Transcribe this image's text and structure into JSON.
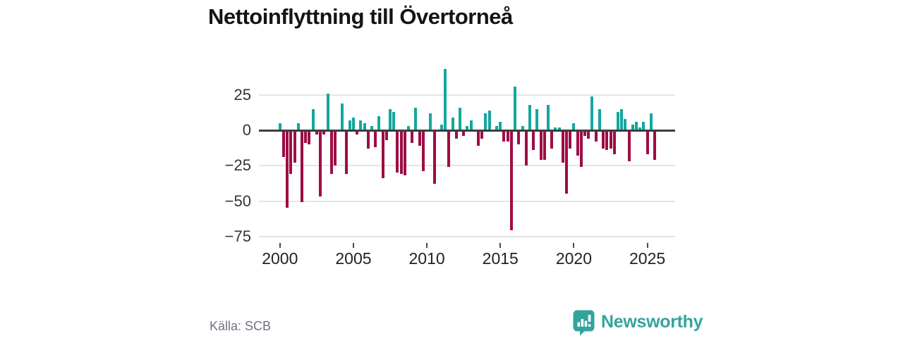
{
  "title": "Nettoinflyttning till Övertorneå",
  "source": "Källa: SCB",
  "branding": {
    "name": "Newsworthy",
    "color": "#35a39c"
  },
  "chart_data": {
    "type": "bar",
    "title": "Nettoinflyttning till Övertorneå",
    "frequency": "quarterly",
    "x_start_year": 2000,
    "x_start_quarter": 1,
    "values": [
      5,
      -18,
      -54,
      -30,
      -22,
      5,
      -50,
      -8,
      -9,
      15,
      -2,
      -46,
      -2,
      26,
      -30,
      -24,
      0,
      19,
      -30,
      7,
      9,
      -2,
      7,
      5,
      -12,
      3,
      -11,
      10,
      -33,
      -6,
      15,
      13,
      -29,
      -30,
      -31,
      3,
      -8,
      16,
      -10,
      -28,
      0,
      12,
      -37,
      0,
      4,
      43,
      -25,
      9,
      -5,
      16,
      -3,
      3,
      7,
      0,
      -10,
      -5,
      12,
      14,
      0,
      3,
      6,
      -7,
      -7,
      -70,
      31,
      -9,
      3,
      -24,
      18,
      -13,
      15,
      -20,
      -20,
      18,
      -12,
      2,
      2,
      -22,
      -44,
      -12,
      5,
      -17,
      -25,
      -3,
      -5,
      24,
      -7,
      15,
      -12,
      -13,
      -12,
      -16,
      13,
      15,
      8,
      -21,
      4,
      6,
      2,
      6,
      -16,
      12,
      -20
    ],
    "x_tick_years": [
      2000,
      2005,
      2010,
      2015,
      2020,
      2025
    ],
    "x_tick_labels": [
      "2000",
      "2005",
      "2010",
      "2015",
      "2020",
      "2025"
    ],
    "y_ticks": [
      25,
      0,
      -25,
      -50,
      -75
    ],
    "y_tick_labels": [
      "25",
      "0",
      "−25",
      "−50",
      "−75"
    ],
    "ylim": [
      -80,
      45
    ],
    "grid": true,
    "legend": false,
    "colors": {
      "positive": "#14a7a0",
      "negative": "#9e0d45",
      "zero_axis": "#3d3d3d",
      "grid": "#e4e4e4"
    }
  }
}
